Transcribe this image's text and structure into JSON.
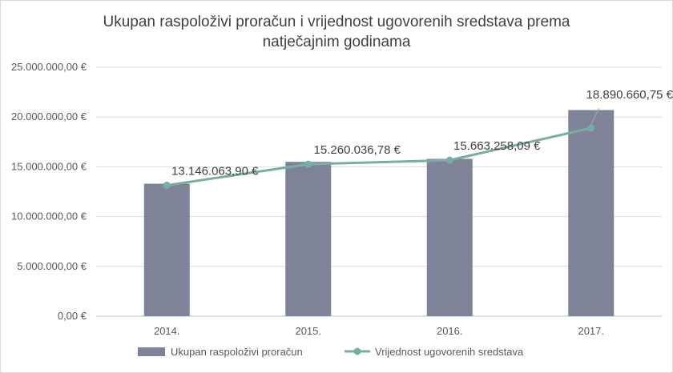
{
  "chart_data": {
    "type": "bar",
    "title_lines": [
      "Ukupan raspoloživi proračun i vrijednost ugovorenih sredstava prema",
      "natječajnim godinama"
    ],
    "categories": [
      "2014.",
      "2015.",
      "2016.",
      "2017."
    ],
    "series": [
      {
        "name": "Ukupan raspoloživi proračun",
        "type": "bar",
        "color": "#7f8397",
        "values": [
          13300000,
          15500000,
          15800000,
          20700000
        ]
      },
      {
        "name": "Vrijednost ugovorenih sredstava",
        "type": "line",
        "color": "#77aea3",
        "values": [
          13146063.9,
          15260036.78,
          15663258.09,
          18890660.75
        ],
        "data_labels": [
          "13.146.063,90 €",
          "15.260.036,78 €",
          "15.663.258,09 €",
          "18.890.660,75 €"
        ]
      }
    ],
    "ylim": [
      0,
      25000000
    ],
    "yticks": [
      0,
      5000000,
      10000000,
      15000000,
      20000000,
      25000000
    ],
    "ytick_labels": [
      "0,00 €",
      "5.000.000,00 €",
      "10.000.000,00 €",
      "15.000.000,00 €",
      "20.000.000,00 €",
      "25.000.000,00 €"
    ],
    "grid": true,
    "legend_position": "bottom"
  }
}
